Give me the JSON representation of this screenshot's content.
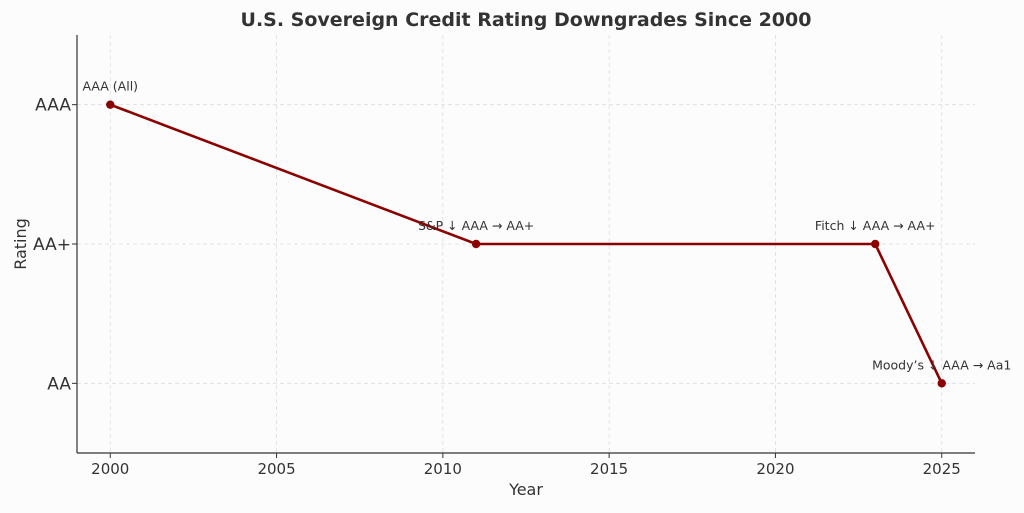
{
  "chart_data": {
    "type": "line",
    "title": "U.S. Sovereign Credit Rating Downgrades Since 2000",
    "xlabel": "Year",
    "ylabel": "Rating",
    "xlim": [
      1999,
      2026
    ],
    "ylim": [
      -0.5,
      2.5
    ],
    "x_ticks": [
      2000,
      2005,
      2010,
      2015,
      2020,
      2025
    ],
    "y_ticks": [
      {
        "value": 0,
        "label": "AA"
      },
      {
        "value": 1,
        "label": "AA+"
      },
      {
        "value": 2,
        "label": "AAA"
      }
    ],
    "grid": true,
    "line_color": "#8b0000",
    "series": [
      {
        "x": [
          2000,
          2011,
          2023,
          2025
        ],
        "y": [
          2,
          1,
          1,
          0
        ],
        "annotations": [
          "AAA (All)",
          "S&P ↓ AAA → AA+",
          "Fitch ↓ AAA → AA+",
          "Moody’s ↓ AAA → Aa1"
        ]
      }
    ]
  }
}
